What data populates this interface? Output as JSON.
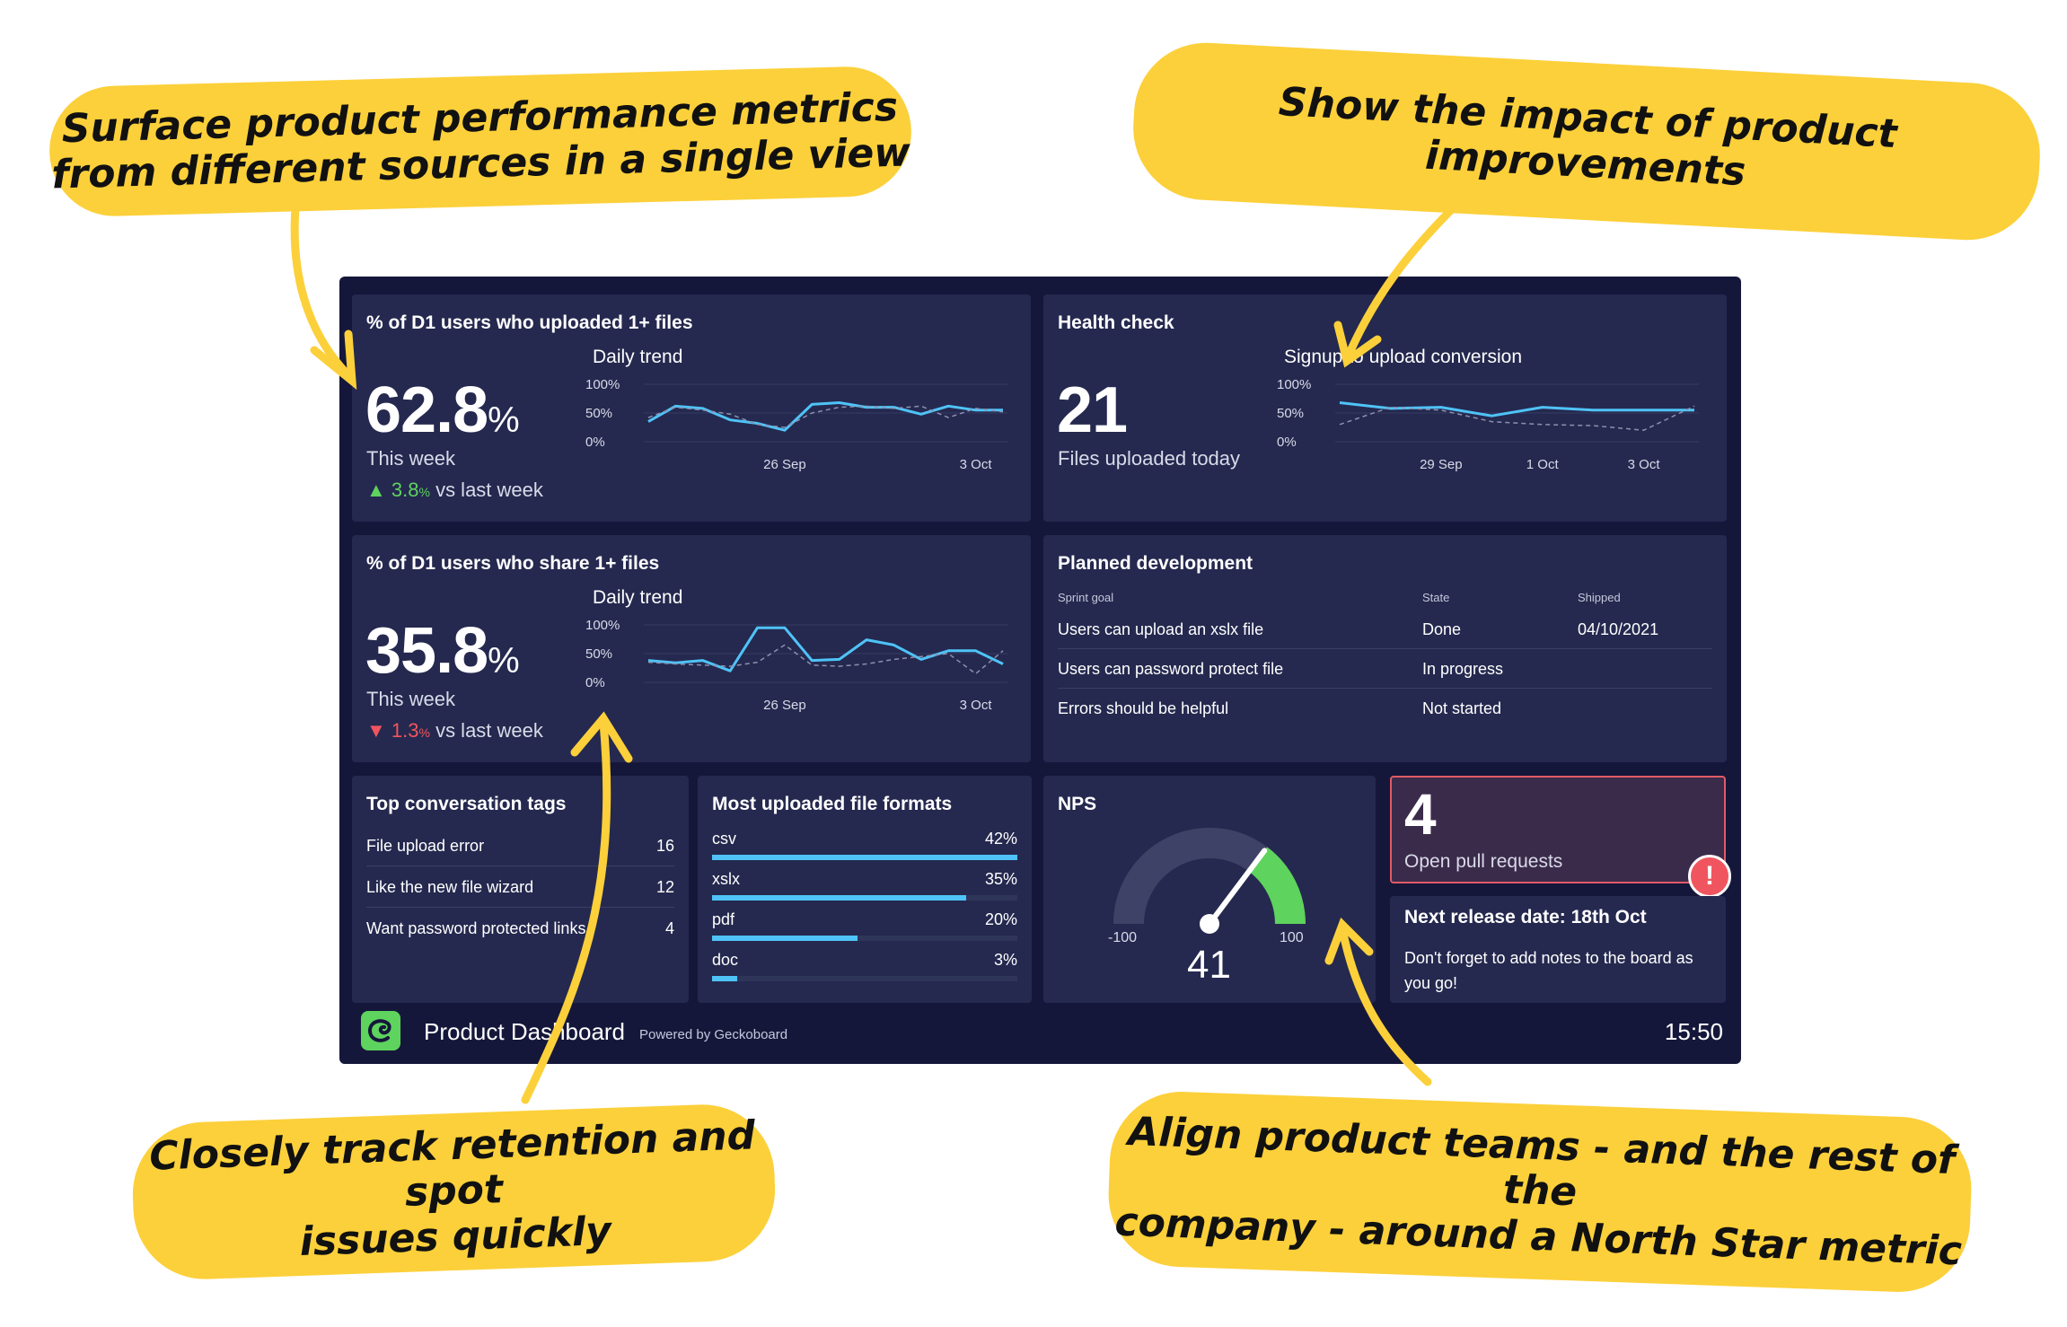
{
  "callouts": {
    "c1": [
      "Surface product performance metrics",
      "from different sources in a single view"
    ],
    "c2": [
      "Show the impact of product improvements"
    ],
    "c3": [
      "Closely track retention and spot",
      "issues quickly"
    ],
    "c4": [
      "Align product teams - and the rest of the",
      "company - around a North Star metric"
    ]
  },
  "colors": {
    "accent": "#fcd03a",
    "background": "#15173a",
    "panel": "#25294f",
    "line": "#4fc3f7",
    "positive": "#5ed35e",
    "negative": "#f0555f",
    "nps_green": "#5ed35e",
    "alert": "#f0555f"
  },
  "panels": {
    "upload": {
      "title": "% of D1 users who uploaded 1+ files",
      "value": "62.8",
      "unit": "%",
      "period": "This week",
      "delta_value": "3.8",
      "delta_unit": "%",
      "delta_text": "vs last week",
      "delta_direction": "up",
      "chart_title": "Daily trend"
    },
    "share": {
      "title": "% of D1 users who share 1+ files",
      "value": "35.8",
      "unit": "%",
      "period": "This week",
      "delta_value": "1.3",
      "delta_unit": "%",
      "delta_text": "vs last week",
      "delta_direction": "down",
      "chart_title": "Daily trend"
    },
    "health": {
      "title": "Health check",
      "value": "21",
      "label": "Files uploaded today",
      "chart_title": "Signup to upload conversion"
    },
    "planned": {
      "title": "Planned development",
      "columns": [
        "Sprint goal",
        "State",
        "Shipped"
      ],
      "rows": [
        [
          "Users can upload an xslx file",
          "Done",
          "04/10/2021"
        ],
        [
          "Users can password protect file",
          "In progress",
          ""
        ],
        [
          "Errors should be helpful",
          "Not started",
          ""
        ]
      ]
    },
    "tags": {
      "title": "Top conversation tags",
      "items": [
        {
          "label": "File upload error",
          "value": "16"
        },
        {
          "label": "Like the new file wizard",
          "value": "12"
        },
        {
          "label": "Want password protected links",
          "value": "4"
        }
      ]
    },
    "formats": {
      "title": "Most uploaded file formats",
      "items": [
        {
          "label": "csv",
          "value": "42%",
          "pct": 42
        },
        {
          "label": "xslx",
          "value": "35%",
          "pct": 35
        },
        {
          "label": "pdf",
          "value": "20%",
          "pct": 20
        },
        {
          "label": "doc",
          "value": "3%",
          "pct": 3
        }
      ]
    },
    "nps": {
      "title": "NPS",
      "value": "41",
      "min": "-100",
      "max": "100",
      "score": 41
    },
    "prs": {
      "value": "4",
      "label": "Open pull requests"
    },
    "release": {
      "title": "Next release date: 18th Oct",
      "note": "Don't forget to add notes to the board as you go!"
    }
  },
  "footer": {
    "name": "Product Dashboard",
    "powered": "Powered by Geckoboard",
    "time": "15:50"
  },
  "chart_data": [
    {
      "type": "line",
      "title": "Daily trend",
      "yticks": [
        "100%",
        "50%",
        "0%"
      ],
      "ylim": [
        0,
        100
      ],
      "xticks": [
        {
          "label": "26 Sep",
          "index": 5
        },
        {
          "label": "3 Oct",
          "index": 12
        }
      ],
      "series": [
        {
          "values": [
            35,
            62,
            58,
            38,
            32,
            20,
            65,
            68,
            60,
            60,
            48,
            62,
            55,
            55
          ]
        },
        {
          "values": [
            42,
            60,
            55,
            48,
            30,
            25,
            50,
            60,
            62,
            58,
            62,
            42,
            58,
            52
          ]
        }
      ]
    },
    {
      "type": "line",
      "title": "Daily trend",
      "yticks": [
        "100%",
        "50%",
        "0%"
      ],
      "ylim": [
        0,
        100
      ],
      "xticks": [
        {
          "label": "26 Sep",
          "index": 5
        },
        {
          "label": "3 Oct",
          "index": 12
        }
      ],
      "series": [
        {
          "values": [
            38,
            34,
            38,
            20,
            95,
            95,
            38,
            40,
            74,
            65,
            40,
            55,
            55,
            32
          ]
        },
        {
          "values": [
            35,
            32,
            30,
            28,
            35,
            65,
            30,
            28,
            32,
            40,
            45,
            50,
            15,
            55
          ]
        }
      ]
    },
    {
      "type": "line",
      "title": "Signup to upload conversion",
      "yticks": [
        "100%",
        "50%",
        "0%"
      ],
      "ylim": [
        0,
        100
      ],
      "xticks": [
        {
          "label": "29 Sep",
          "index": 2
        },
        {
          "label": "1 Oct",
          "index": 4
        },
        {
          "label": "3 Oct",
          "index": 6
        }
      ],
      "series": [
        {
          "values": [
            68,
            58,
            60,
            45,
            60,
            55,
            55,
            55
          ]
        },
        {
          "values": [
            30,
            60,
            55,
            35,
            30,
            28,
            20,
            62
          ]
        }
      ]
    }
  ]
}
